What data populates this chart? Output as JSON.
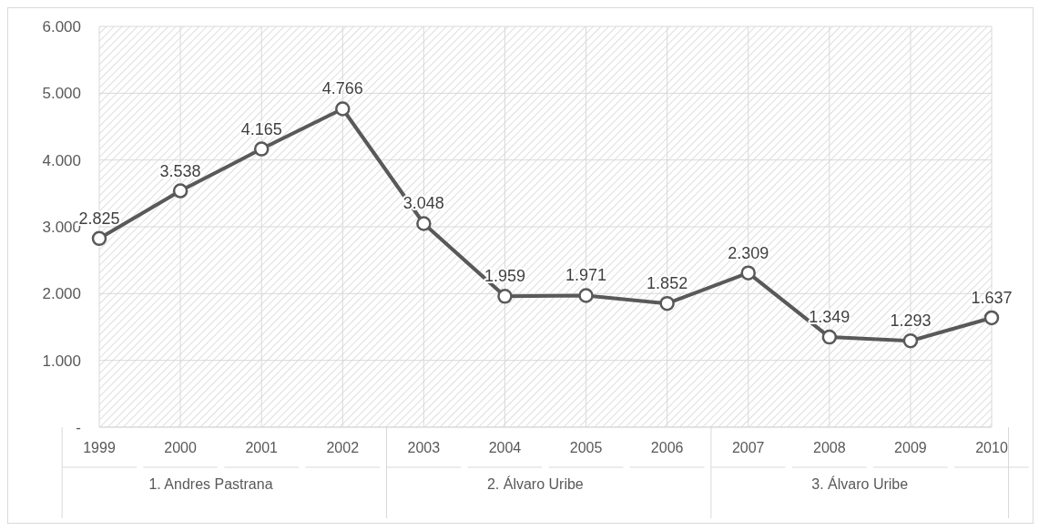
{
  "chart_data": {
    "type": "line",
    "categories": [
      "1999",
      "2000",
      "2001",
      "2002",
      "2003",
      "2004",
      "2005",
      "2006",
      "2007",
      "2008",
      "2009",
      "2010"
    ],
    "series": [
      {
        "color": "#595959",
        "values": [
          2825,
          3538,
          4165,
          4766,
          3048,
          1959,
          1971,
          1852,
          2309,
          1349,
          1293,
          1637
        ],
        "value_labels": [
          "2.825",
          "3.538",
          "4.165",
          "4.766",
          "3.048",
          "1.959",
          "1.971",
          "1.852",
          "2.309",
          "1.349",
          "1.293",
          "1.637"
        ]
      }
    ],
    "ylim": [
      0,
      6000
    ],
    "yticks": [
      {
        "value": 0,
        "label": "-"
      },
      {
        "value": 1000,
        "label": "1.000"
      },
      {
        "value": 2000,
        "label": "2.000"
      },
      {
        "value": 3000,
        "label": "3.000"
      },
      {
        "value": 4000,
        "label": "4.000"
      },
      {
        "value": 5000,
        "label": "5.000"
      },
      {
        "value": 6000,
        "label": "6.000"
      }
    ],
    "annotations": [
      "1. Andres Pastrana",
      "2. Álvaro Uribe",
      "3. Álvaro Uribe"
    ],
    "grid": true,
    "marker": "circle",
    "line_style": "solid"
  }
}
